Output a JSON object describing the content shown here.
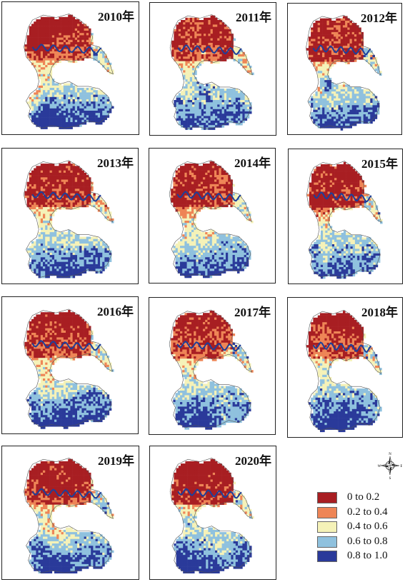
{
  "panels": [
    {
      "label": "2010年",
      "hot": 0.55,
      "cool": 0.45,
      "seed": 11
    },
    {
      "label": "2011年",
      "hot": 0.7,
      "cool": 0.35,
      "seed": 23
    },
    {
      "label": "2012年",
      "hot": 0.8,
      "cool": 0.35,
      "seed": 37
    },
    {
      "label": "2013年",
      "hot": 0.75,
      "cool": 0.4,
      "seed": 41
    },
    {
      "label": "2014年",
      "hot": 0.7,
      "cool": 0.45,
      "seed": 53
    },
    {
      "label": "2015年",
      "hot": 0.65,
      "cool": 0.35,
      "seed": 67
    },
    {
      "label": "2016年",
      "hot": 0.6,
      "cool": 0.55,
      "seed": 71
    },
    {
      "label": "2017年",
      "hot": 0.5,
      "cool": 0.4,
      "seed": 83
    },
    {
      "label": "2018年",
      "hot": 0.55,
      "cool": 0.55,
      "seed": 97
    },
    {
      "label": "2019年",
      "hot": 0.55,
      "cool": 0.45,
      "seed": 101
    },
    {
      "label": "2020年",
      "hot": 0.75,
      "cool": 0.5,
      "seed": 113
    }
  ],
  "legend": [
    {
      "label": "0 to 0.2",
      "color": "#a81e22"
    },
    {
      "label": "0.2 to 0.4",
      "color": "#ee8556"
    },
    {
      "label": "0.4 to 0.6",
      "color": "#f5f2b8"
    },
    {
      "label": "0.6 to 0.8",
      "color": "#8fc1de"
    },
    {
      "label": "0.8 to 1.0",
      "color": "#2a3a9a"
    }
  ],
  "compass": {
    "n": "N",
    "s": "S",
    "e": "E",
    "w": "W"
  }
}
